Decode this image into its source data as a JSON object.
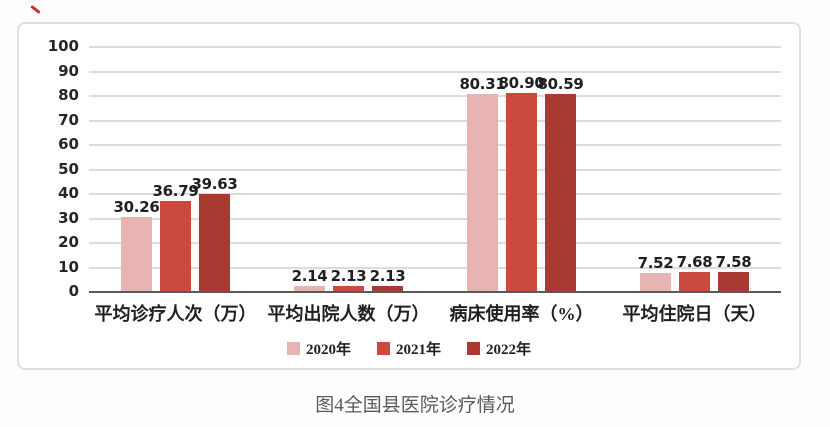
{
  "page": {
    "caption": "图4全国县医院诊疗情况"
  },
  "colors": {
    "series_2020": "#e7b3b3",
    "series_2021": "#cc4a3d",
    "series_2022": "#a93a31",
    "gridline": "#dcdcdc",
    "axis_line": "#595959",
    "text": "#1f1f1f",
    "caption_text": "#5a5a5a",
    "panel_border": "#dcdfe4",
    "corner_mark": "#c0392b"
  },
  "chart_data": {
    "type": "bar",
    "title": "",
    "xlabel": "",
    "ylabel": "",
    "categories": [
      "平均诊疗人次（万）",
      "平均出院人数（万）",
      "病床使用率（%）",
      "平均住院日（天）"
    ],
    "series": [
      {
        "name": "2020年",
        "color": "#e7b3b3",
        "values": [
          30.26,
          2.14,
          80.31,
          7.52
        ],
        "labels": [
          "30.26",
          "2.14",
          "80.31",
          "7.52"
        ]
      },
      {
        "name": "2021年",
        "color": "#cc4a3d",
        "values": [
          36.79,
          2.13,
          80.9,
          7.68
        ],
        "labels": [
          "36.79",
          "2.13",
          "80.90",
          "7.68"
        ]
      },
      {
        "name": "2022年",
        "color": "#a93a31",
        "values": [
          39.63,
          2.13,
          80.59,
          7.58
        ],
        "labels": [
          "39.63",
          "2.13",
          "80.59",
          "7.58"
        ]
      }
    ],
    "ylim": [
      0,
      100
    ],
    "ytick_interval": 10,
    "yticks": [
      "100",
      "90",
      "80",
      "70",
      "60",
      "50",
      "40",
      "30",
      "20",
      "10",
      "0"
    ],
    "grid": true,
    "legend_position": "bottom"
  }
}
